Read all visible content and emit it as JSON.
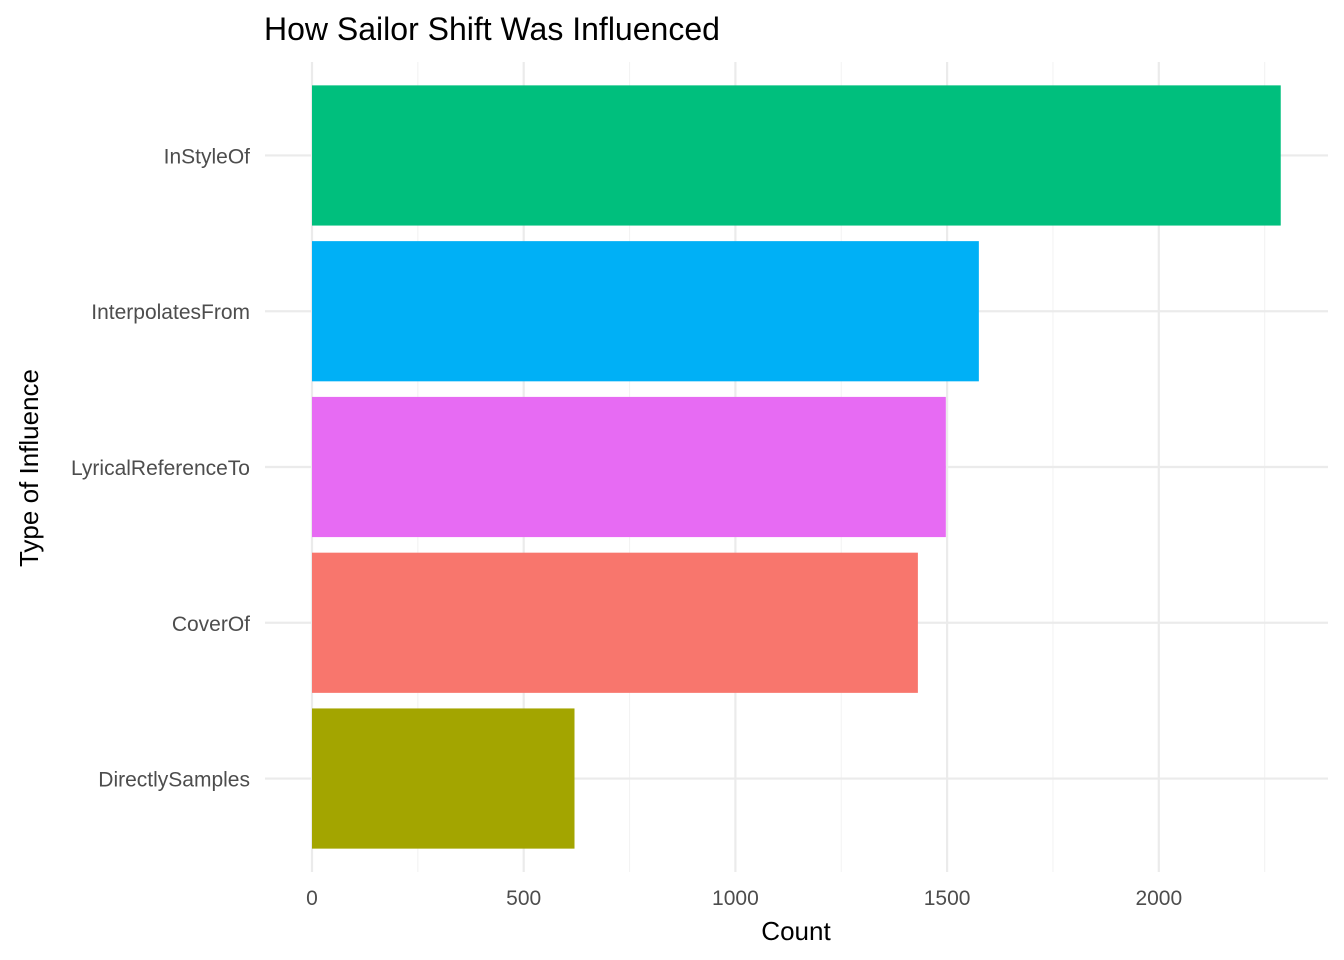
{
  "chart_data": {
    "type": "bar",
    "orientation": "horizontal",
    "title": "How Sailor Shift Was Influenced",
    "xlabel": "Count",
    "ylabel": "Type of Influence",
    "categories": [
      "InStyleOf",
      "InterpolatesFrom",
      "LyricalReferenceTo",
      "CoverOf",
      "DirectlySamples"
    ],
    "values": [
      2288,
      1575,
      1497,
      1431,
      620
    ],
    "colors": [
      "#00BF7D",
      "#00B0F6",
      "#E76BF3",
      "#F8766D",
      "#A3A500"
    ],
    "xlim": [
      0,
      2400
    ],
    "xticks": [
      0,
      500,
      1000,
      1500,
      2000
    ],
    "grid": true,
    "legend": "none"
  }
}
